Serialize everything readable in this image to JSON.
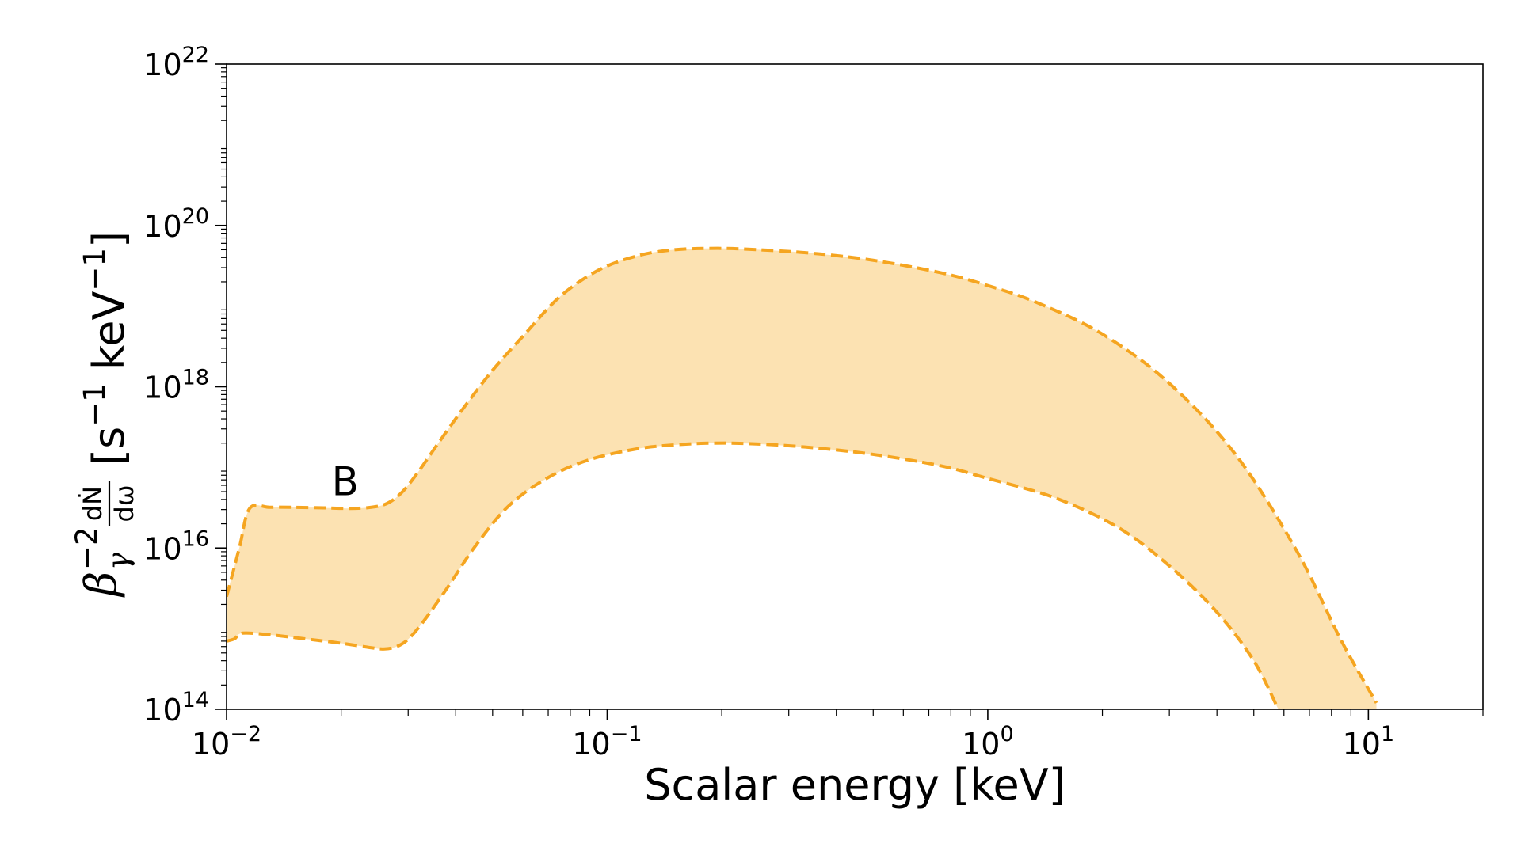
{
  "chart_data": {
    "type": "area",
    "title": "",
    "xlabel": "Scalar energy [keV]",
    "ylabel_parts": {
      "beta": "β",
      "beta_sup": "−2",
      "beta_sub": "γ",
      "frac_num": "dṄ",
      "frac_den": "dω",
      "units_open": "[s",
      "s_sup": "−1",
      "units_mid": " keV",
      "kev_sup": "−1",
      "units_close": "]"
    },
    "x_scale": "log",
    "y_scale": "log",
    "xlim": [
      0.01,
      20
    ],
    "ylim": [
      100000000000000.0,
      1e+22
    ],
    "x_tick_labels": [
      {
        "base": "10",
        "exp": "−2"
      },
      {
        "base": "10",
        "exp": "−1"
      },
      {
        "base": "10",
        "exp": "0"
      },
      {
        "base": "10",
        "exp": "1"
      }
    ],
    "y_tick_labels": [
      {
        "base": "10",
        "exp": "14"
      },
      {
        "base": "10",
        "exp": "16"
      },
      {
        "base": "10",
        "exp": "18"
      },
      {
        "base": "10",
        "exp": "20"
      },
      {
        "base": "10",
        "exp": "22"
      }
    ],
    "annotation": {
      "text": "B",
      "x": 0.0205,
      "y": 4.5e+16
    },
    "series": [
      {
        "style": "dashed",
        "role": "upper",
        "x": [
          0.01,
          0.0108,
          0.0115,
          0.013,
          0.015,
          0.018,
          0.021,
          0.024,
          0.0265,
          0.029,
          0.032,
          0.036,
          0.042,
          0.05,
          0.06,
          0.075,
          0.095,
          0.12,
          0.15,
          0.195,
          0.25,
          0.35,
          0.5,
          0.75,
          1.0,
          1.35,
          2.0,
          3.0,
          4.5,
          6.5,
          8.5,
          10.5
        ],
        "y": [
          2500000000000000.0,
          1e+16,
          3.1e+16,
          3.2e+16,
          3.2e+16,
          3.15e+16,
          3.1e+16,
          3.2e+16,
          3.6e+16,
          5e+16,
          9e+16,
          2e+17,
          5.5e+17,
          1.6e+18,
          4.2e+18,
          1.3e+19,
          2.8e+19,
          4.2e+19,
          5e+19,
          5.2e+19,
          5e+19,
          4.5e+19,
          3.7e+19,
          2.6e+19,
          1.8e+19,
          1.1e+19,
          4.5e+18,
          1.1e+18,
          1.4e+17,
          9000000000000000.0,
          700000000000000.0,
          120000000000000.0
        ]
      },
      {
        "style": "dashed",
        "role": "lower",
        "x": [
          0.01,
          0.0105,
          0.011,
          0.013,
          0.016,
          0.02,
          0.024,
          0.026,
          0.028,
          0.03,
          0.033,
          0.038,
          0.045,
          0.055,
          0.07,
          0.09,
          0.12,
          0.15,
          0.19,
          0.25,
          0.35,
          0.5,
          0.75,
          1.0,
          1.5,
          2.2,
          3.0,
          4.0,
          5.0,
          5.8
        ],
        "y": [
          700000000000000.0,
          750000000000000.0,
          880000000000000.0,
          840000000000000.0,
          750000000000000.0,
          660000000000000.0,
          580000000000000.0,
          560000000000000.0,
          600000000000000.0,
          740000000000000.0,
          1250000000000000.0,
          3200000000000000.0,
          1.05e+16,
          3.3e+16,
          7.5e+16,
          1.25e+17,
          1.7e+17,
          1.9e+17,
          2e+17,
          1.95e+17,
          1.75e+17,
          1.45e+17,
          1.05e+17,
          7.3e+16,
          4.2e+16,
          1.8e+16,
          6000000000000000.0,
          1600000000000000.0,
          400000000000000.0,
          100000000000000.0
        ]
      }
    ],
    "fill_color": "#fce2b2",
    "line_color": "#f5a520",
    "grid": false,
    "legend": "none"
  }
}
